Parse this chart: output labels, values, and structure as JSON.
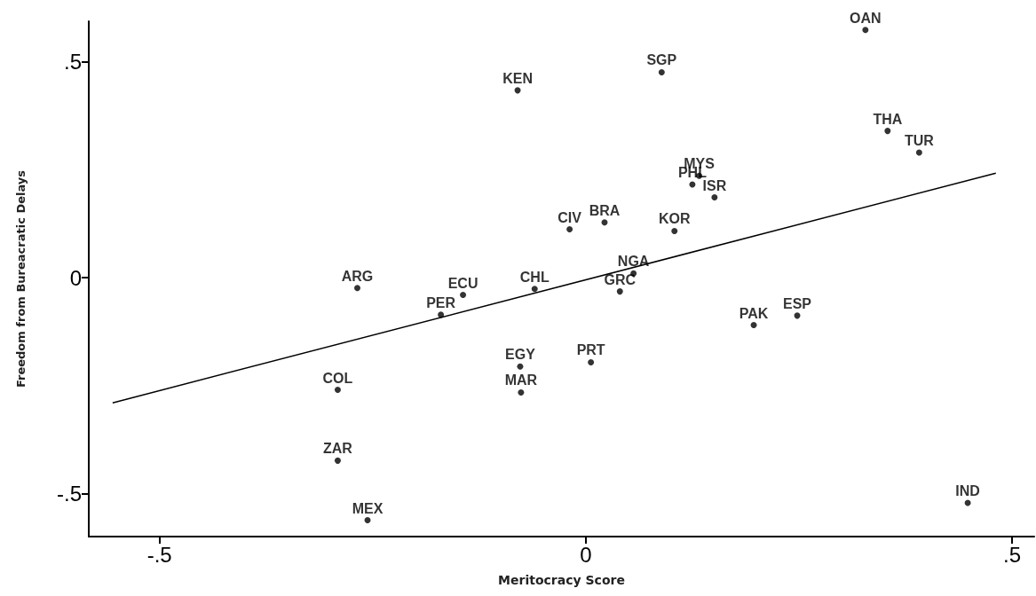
{
  "chart_data": {
    "type": "scatter",
    "xlabel": "Meritocracy Score",
    "ylabel": "Freedom from Bureacratic Delays",
    "xlim": [
      -0.583,
      0.526
    ],
    "ylim": [
      -0.6,
      0.594
    ],
    "xticks": [
      {
        "value": -0.5,
        "label": "-.5"
      },
      {
        "value": 0,
        "label": "0"
      },
      {
        "value": 0.5,
        "label": ".5"
      }
    ],
    "yticks": [
      {
        "value": -0.5,
        "label": "-.5"
      },
      {
        "value": 0,
        "label": "0"
      },
      {
        "value": 0.5,
        "label": ".5"
      }
    ],
    "grid": false,
    "series": [
      {
        "type": "scatter",
        "color": "#000000",
        "marker": "circle",
        "x": [
          0.328,
          0.089,
          -0.08,
          0.354,
          0.391,
          0.133,
          0.125,
          0.151,
          0.022,
          -0.019,
          0.104,
          0.056,
          -0.268,
          -0.144,
          -0.06,
          0.04,
          -0.17,
          0.248,
          0.197,
          -0.077,
          0.006,
          -0.291,
          -0.076,
          -0.291,
          -0.256,
          0.448
        ],
        "values": [
          0.574,
          0.476,
          0.434,
          0.34,
          0.29,
          0.236,
          0.216,
          0.186,
          0.128,
          0.112,
          0.108,
          0.01,
          -0.024,
          -0.04,
          -0.026,
          -0.032,
          -0.086,
          -0.088,
          -0.11,
          -0.206,
          -0.196,
          -0.26,
          -0.266,
          -0.424,
          -0.562,
          -0.522
        ],
        "value_labels": [
          "OAN",
          "SGP",
          "KEN",
          "THA",
          "TUR",
          "MYS",
          "PHL",
          "ISR",
          "BRA",
          "CIV",
          "KOR",
          "NGA",
          "ARG",
          "ECU",
          "CHL",
          "GRC",
          "PER",
          "ESP",
          "PAK",
          "EGY",
          "PRT",
          "COL",
          "MAR",
          "ZAR",
          "MEX",
          "IND"
        ]
      },
      {
        "type": "line",
        "color": "#000000",
        "marker": "none",
        "x": [
          -0.555,
          0.481
        ],
        "values": [
          -0.29,
          0.242
        ]
      }
    ]
  }
}
